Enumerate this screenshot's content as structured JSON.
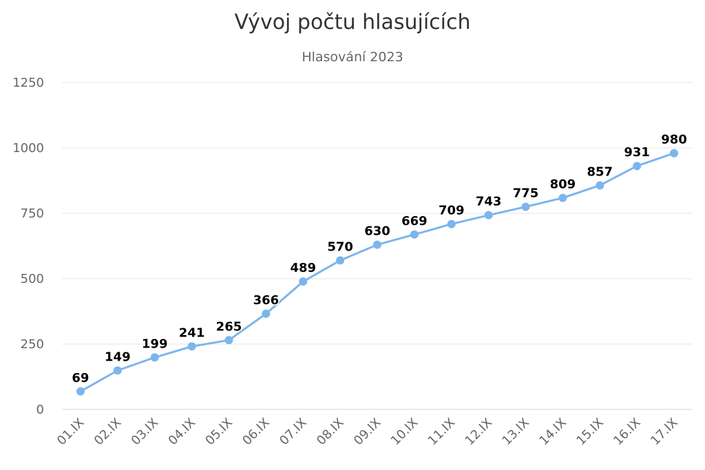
{
  "chart_data": {
    "type": "line",
    "title": "Vývoj počtu hlasujících",
    "subtitle": "Hlasování 2023",
    "xlabel": "",
    "ylabel": "",
    "categories": [
      "01.IX",
      "02.IX",
      "03.IX",
      "04.IX",
      "05.IX",
      "06.IX",
      "07.IX",
      "08.IX",
      "09.IX",
      "10.IX",
      "11.IX",
      "12.IX",
      "13.IX",
      "14.IX",
      "15.IX",
      "16.IX",
      "17.IX"
    ],
    "series": [
      {
        "values": [
          69,
          149,
          199,
          241,
          265,
          366,
          489,
          570,
          630,
          669,
          709,
          743,
          775,
          809,
          857,
          931,
          980
        ]
      }
    ],
    "ylim": [
      0,
      1250
    ],
    "yticks": [
      0,
      250,
      500,
      750,
      1000,
      1250
    ],
    "grid": true,
    "legend": "none",
    "data_labels": true,
    "colors": {
      "line": "#7cb5ec",
      "grid": "#e6e6e6",
      "axis": "#ccd6eb"
    }
  }
}
